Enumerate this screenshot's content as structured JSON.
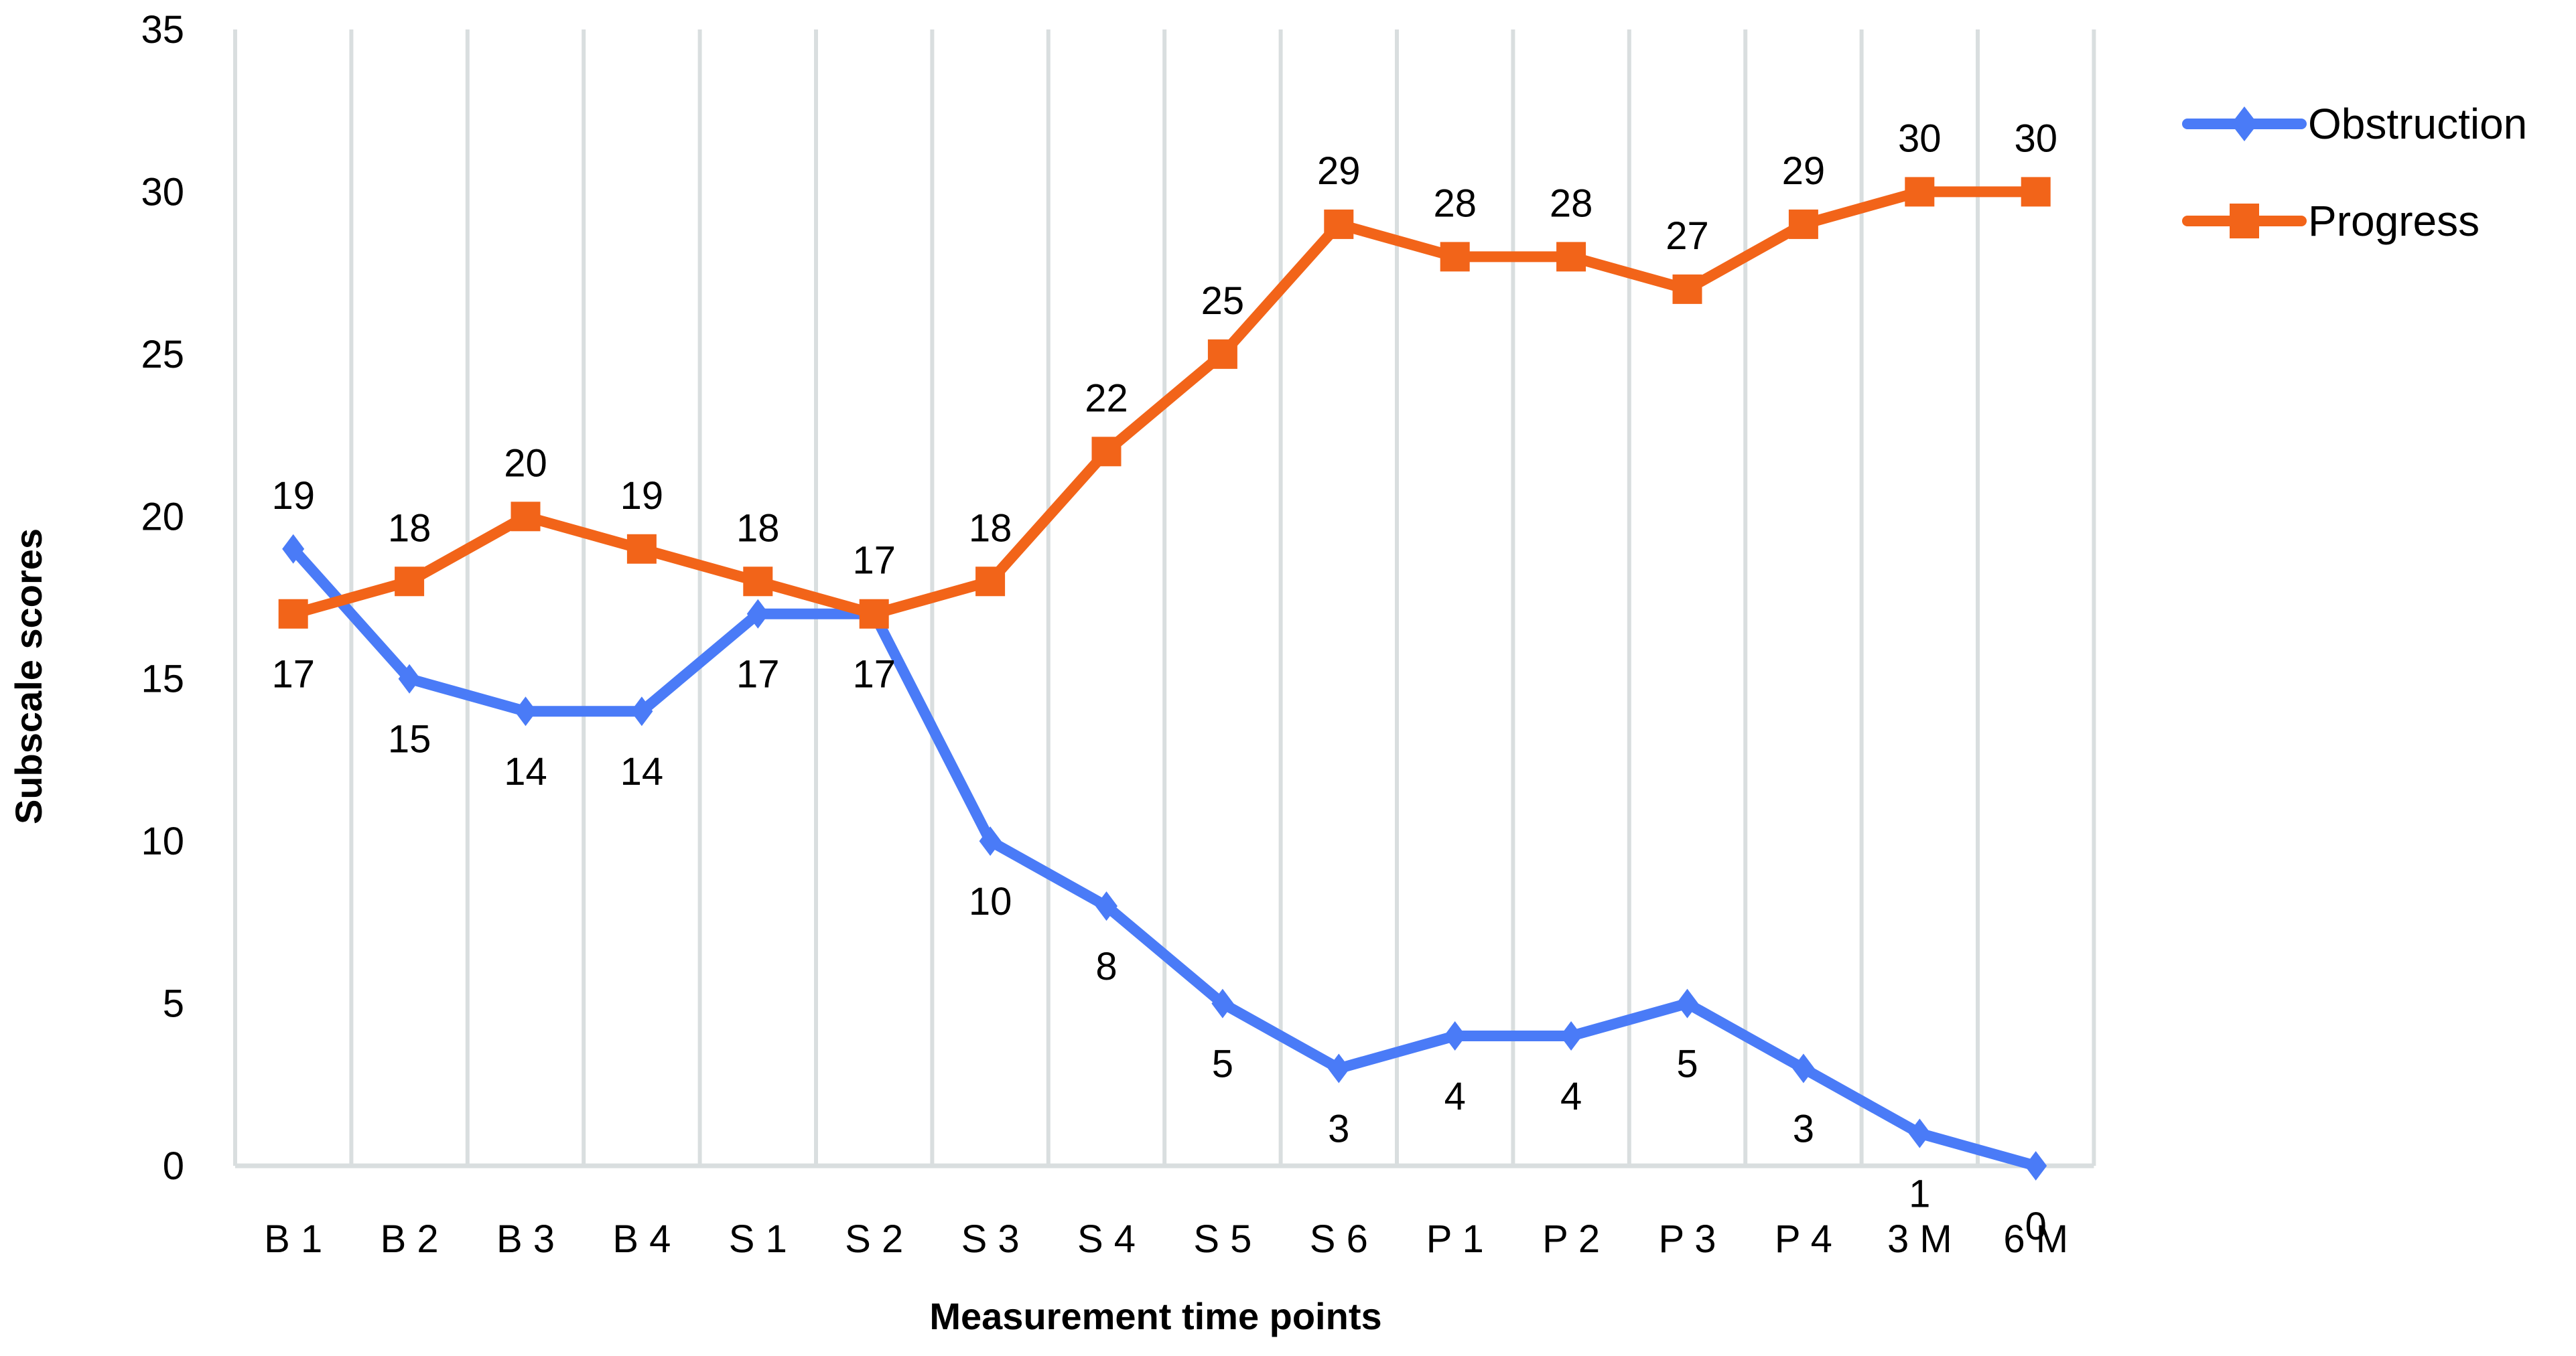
{
  "chart_data": {
    "type": "line",
    "title": "",
    "xlabel": "Measurement time points",
    "ylabel": "Subscale scores",
    "ylim": [
      0,
      35
    ],
    "yticks": [
      0,
      5,
      10,
      15,
      20,
      25,
      30,
      35
    ],
    "grid": {
      "vertical": true,
      "horizontal": false
    },
    "legend_position": "right-top",
    "categories": [
      "B1",
      "B2",
      "B3",
      "B4",
      "S1",
      "S2",
      "S3",
      "S4",
      "S5",
      "S6",
      "P1",
      "P2",
      "P3",
      "P4",
      "3M",
      "6M"
    ],
    "series": [
      {
        "name": "Obstruction",
        "color": "#4A7BF7",
        "marker": "diamond",
        "values": [
          19,
          15,
          14,
          14,
          17,
          17,
          10,
          8,
          5,
          3,
          4,
          4,
          5,
          3,
          1,
          0
        ]
      },
      {
        "name": "Progress",
        "color": "#F26419",
        "marker": "square",
        "values": [
          17,
          18,
          20,
          19,
          18,
          17,
          18,
          22,
          25,
          29,
          28,
          28,
          27,
          29,
          30,
          30
        ]
      }
    ]
  },
  "labels": {
    "xlabel": "Measurement time points",
    "ylabel": "Subscale scores",
    "legend": [
      "Obstruction",
      "Progress"
    ]
  },
  "colors": {
    "obstruction": "#4A7BF7",
    "progress": "#F26419",
    "grid": "#D9DEDF"
  }
}
